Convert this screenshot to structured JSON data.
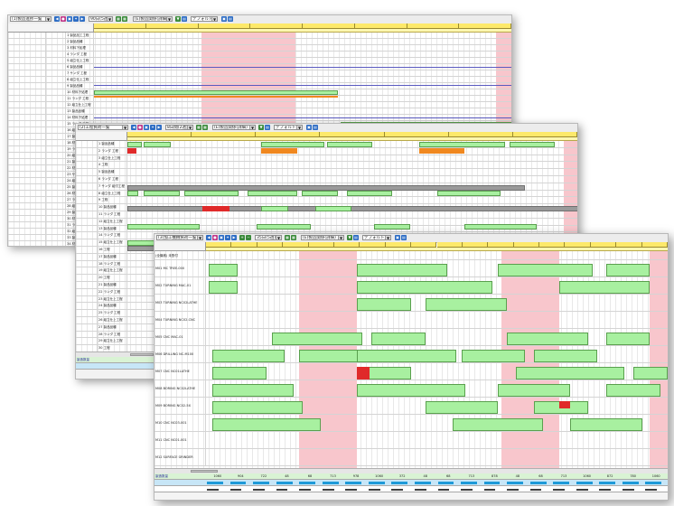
{
  "windows": [
    {
      "title_combo": "(1)製造進捗一覧",
      "range_combo": "90日(5週)",
      "filter_combo": "(E)製造関係(詳細)",
      "label_combo": "デフォルト"
    },
    {
      "title_combo": "(2)工程負荷一覧",
      "range_combo": "8日間(2週)",
      "filter_combo": "(E)製造関係(詳細)",
      "label_combo": "デフォルト"
    },
    {
      "title_combo": "(3)加工機械負荷一覧",
      "range_combo": "35日(5週)",
      "filter_combo": "(E)製造関係(詳細)",
      "label_combo": "デフォルト"
    }
  ],
  "w1": {
    "rows": [
      "1 製品加工工程",
      "2 製品品種",
      "3 材料下処理",
      "4 ランダ 工程",
      "5 組立仕上工程",
      "6 製品品種",
      "7 サンダ 工程",
      "8 組立仕上工程",
      "9 製品品種",
      "10 材料下処理",
      "11 ランダ 工程",
      "12 組立仕上工程",
      "13 製品品種",
      "14 材料下処理",
      "15 ランダ 工程",
      "16 組立仕上工程",
      "17 製品品種",
      "18 材料下処理",
      "19 ランダ 工程",
      "20 組立仕上工程",
      "21 製品品種",
      "22 材料下処理",
      "23 サンダ 工程",
      "24 組立仕上工程",
      "25 製品品種",
      "26 材料下処理",
      "27 ランダ 工程",
      "28 組立仕上工程",
      "29 製品品種",
      "30 材料下処理",
      "31 ランダ 工程",
      "32 組立仕上工程",
      "33 製品品種",
      "34 材料下処理",
      "35 ランダ 工程"
    ]
  },
  "w2": {
    "rows": [
      "1 製品品種",
      "2 ランダ 工程",
      "3 組立仕上工程",
      "4 工程",
      "5 製品品種",
      "6 ランダ 工程",
      "7 サンダ 組付工程",
      "8 組立仕上工程",
      "9 工程",
      "10 製品品種",
      "11 ランダ 工程",
      "12 組立仕上工程",
      "13 製品品種",
      "14 ランダ 工程",
      "15 組立仕上工程",
      "16 工程",
      "17 製品品種",
      "18 ランダ 工程",
      "19 組立仕上工程",
      "20 工程",
      "21 製品品種",
      "22 ランダ 工程",
      "23 組立仕上工程",
      "24 製品品種",
      "25 ランダ 工程",
      "26 組立仕上工程",
      "27 製品品種",
      "28 ランダ 工程",
      "29 組立仕上工程",
      "30 工程"
    ],
    "summary_label": "製造数量"
  },
  "w3": {
    "first_row_label": "(全機械) 未割付",
    "machines": [
      "M01 MC TREE-000",
      "M02 TURNING MAC-01",
      "M03 TURNING NC02LATHE",
      "M04 TURNING NC02-CNC",
      "M05 CNC MAC-01",
      "M06 DRILLING NC-M100",
      "M07 CNC NC01LATHE",
      "M08 BORING NC02LATHE",
      "M09 BORING NC02-5X",
      "M10 CNC NC03-001",
      "M11 CNC NC01-001",
      "M12 SURFACE GRINDER"
    ],
    "footer_label": "製造数量",
    "footer_values": [
      "1060",
      "904",
      "722",
      "48",
      "68",
      "713",
      "978",
      "1060",
      "372",
      "48",
      "68",
      "713",
      "878",
      "48",
      "68",
      "713",
      "1060",
      "872",
      "780",
      "1060"
    ]
  }
}
